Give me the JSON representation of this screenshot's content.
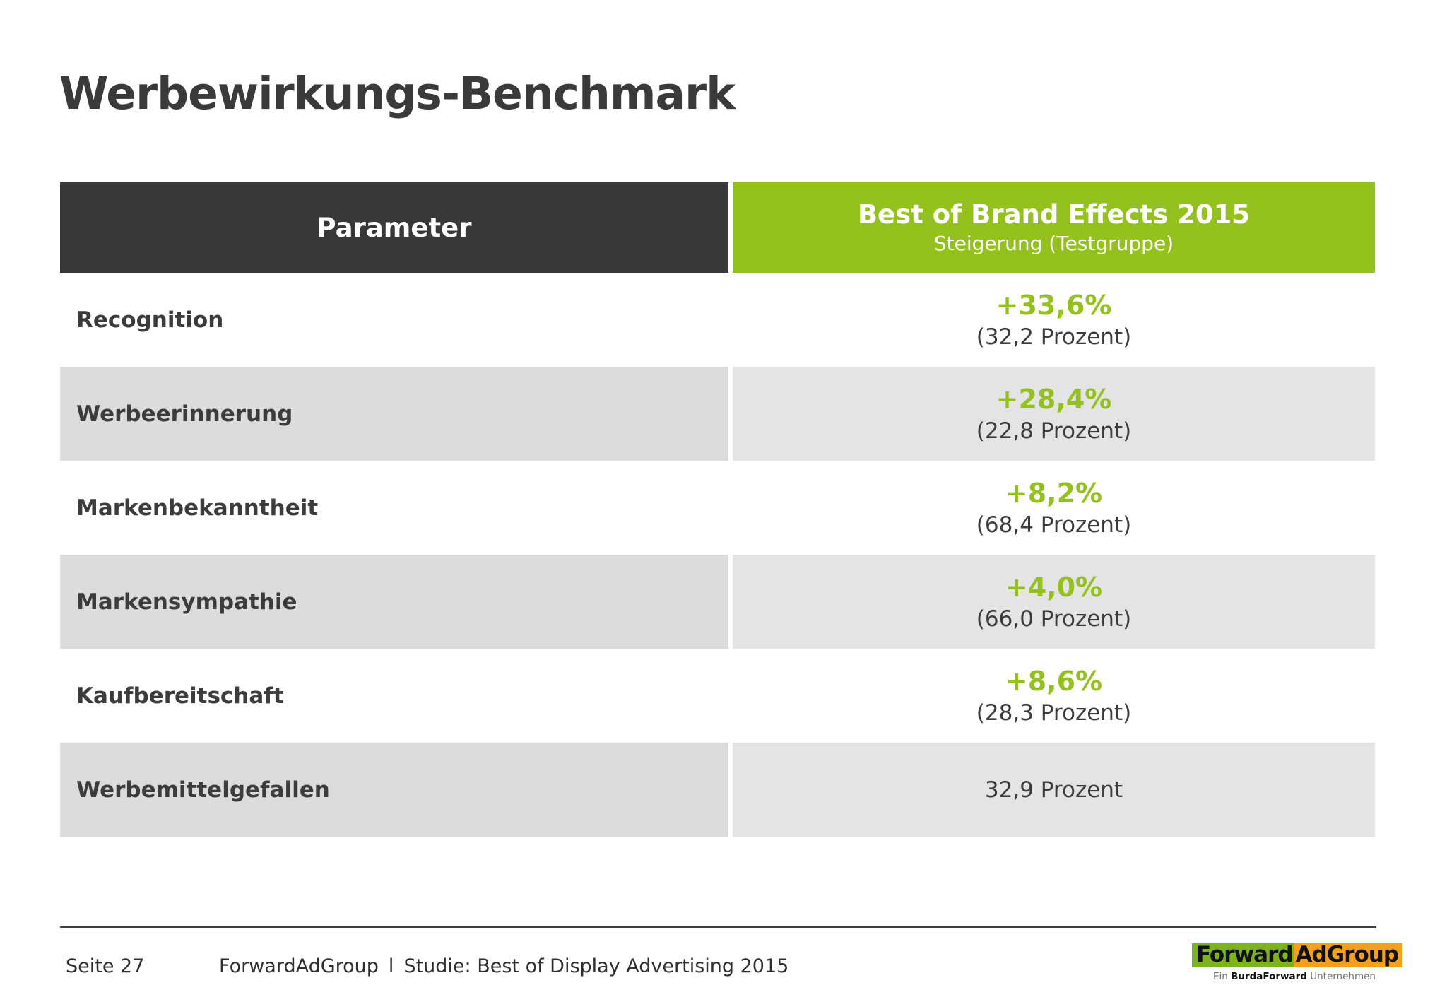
{
  "page": {
    "title": "Werbewirkungs-Benchmark"
  },
  "table": {
    "header": {
      "param": "Parameter",
      "value_title": "Best of Brand Effects 2015",
      "value_subtitle": "Steigerung (Testgruppe)"
    },
    "rows": [
      {
        "label": "Recognition",
        "value": "+33,6%",
        "base": "(32,2 Prozent)"
      },
      {
        "label": "Werbeerinnerung",
        "value": "+28,4%",
        "base": "(22,8 Prozent)"
      },
      {
        "label": "Markenbekanntheit",
        "value": "+8,2%",
        "base": "(68,4 Prozent)"
      },
      {
        "label": "Markensympathie",
        "value": "+4,0%",
        "base": "(66,0 Prozent)"
      },
      {
        "label": "Kaufbereitschaft",
        "value": "+8,6%",
        "base": "(28,3 Prozent)"
      },
      {
        "label": "Werbemittelgefallen",
        "value": "",
        "base": "32,9 Prozent"
      }
    ]
  },
  "footer": {
    "page_number": "Seite 27",
    "brand": "ForwardAdGroup",
    "separator": "l",
    "study": "Studie: Best of Display Advertising 2015"
  },
  "logo": {
    "part1": "Forward",
    "part2": "AdGroup",
    "tagline_prefix": "Ein ",
    "tagline_bold": "BurdaForward",
    "tagline_suffix": " Unternehmen"
  },
  "colors": {
    "accent_green": "#95c11f",
    "header_dark": "#383838",
    "row_gray_left": "#dcdcdc",
    "row_gray_right": "#e4e4e4",
    "logo_green": "#7db41e",
    "logo_orange": "#f5a01d"
  }
}
